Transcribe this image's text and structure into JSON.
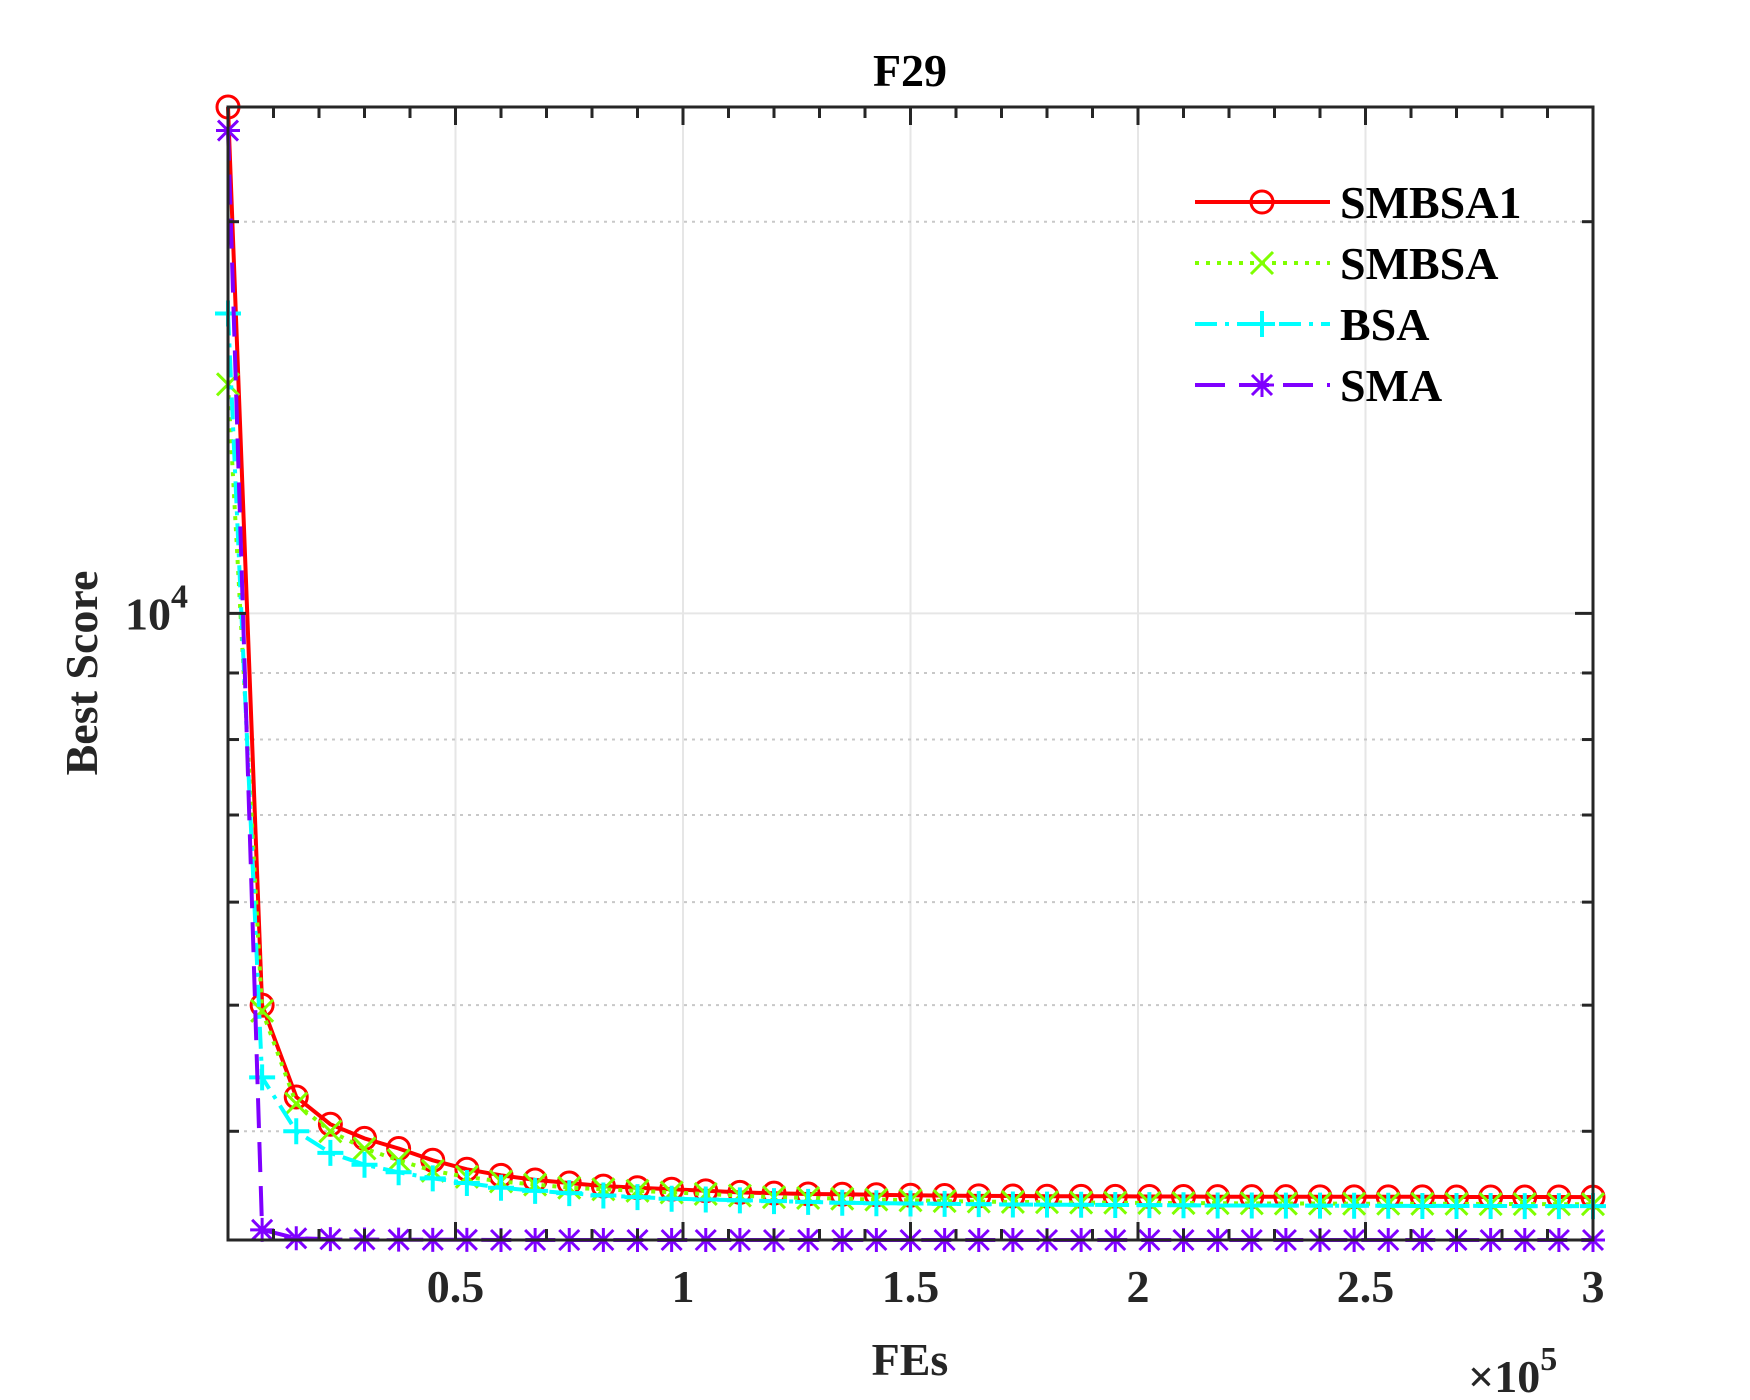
{
  "chart_data": {
    "type": "line",
    "title": "F29",
    "xlabel": "FEs",
    "ylabel": "Best Score",
    "x_exponent_label": "×10",
    "x_exponent": "5",
    "xlim": [
      0,
      300000
    ],
    "ylim": [
      3300,
      24500
    ],
    "yscale": "log",
    "grid": true,
    "legend_position": "top-right",
    "x_ticks": [
      {
        "value": 50000,
        "label": "0.5"
      },
      {
        "value": 100000,
        "label": "1"
      },
      {
        "value": 150000,
        "label": "1.5"
      },
      {
        "value": 200000,
        "label": "2"
      },
      {
        "value": 250000,
        "label": "2.5"
      },
      {
        "value": 300000,
        "label": "3"
      }
    ],
    "y_ticks": [
      {
        "value": 10000,
        "base": "10",
        "exp": "4"
      }
    ],
    "x": [
      0,
      7500,
      15000,
      22500,
      30000,
      37500,
      45000,
      52500,
      60000,
      67500,
      75000,
      82500,
      90000,
      97500,
      105000,
      112500,
      120000,
      127500,
      135000,
      142500,
      150000,
      157500,
      165000,
      172500,
      180000,
      187500,
      195000,
      202500,
      210000,
      217500,
      225000,
      232500,
      240000,
      247500,
      255000,
      262500,
      270000,
      277500,
      285000,
      292500,
      300000
    ],
    "series": [
      {
        "name": "SMBSA1",
        "color": "#ff0000",
        "dash": "solid",
        "marker": "circle",
        "values": [
          24500,
          5000,
          4250,
          4050,
          3950,
          3880,
          3800,
          3740,
          3700,
          3670,
          3650,
          3630,
          3620,
          3610,
          3600,
          3590,
          3585,
          3580,
          3578,
          3575,
          3572,
          3570,
          3568,
          3567,
          3566,
          3565,
          3565,
          3564,
          3564,
          3563,
          3563,
          3563,
          3562,
          3562,
          3562,
          3562,
          3561,
          3561,
          3561,
          3561,
          3560
        ]
      },
      {
        "name": "SMBSA",
        "color": "#7fff00",
        "dash": "dotted",
        "marker": "x",
        "values": [
          15000,
          4950,
          4200,
          4000,
          3880,
          3800,
          3730,
          3690,
          3660,
          3640,
          3620,
          3610,
          3600,
          3590,
          3580,
          3570,
          3560,
          3555,
          3550,
          3545,
          3540,
          3535,
          3532,
          3530,
          3528,
          3526,
          3525,
          3524,
          3523,
          3522,
          3521,
          3520,
          3520,
          3519,
          3519,
          3518,
          3518,
          3517,
          3517,
          3516,
          3516
        ]
      },
      {
        "name": "BSA",
        "color": "#00ffff",
        "dash": "dashdot",
        "marker": "plus",
        "values": [
          17000,
          4400,
          4000,
          3850,
          3770,
          3720,
          3680,
          3650,
          3620,
          3600,
          3585,
          3570,
          3560,
          3550,
          3545,
          3540,
          3535,
          3530,
          3525,
          3522,
          3520,
          3518,
          3516,
          3514,
          3513,
          3512,
          3511,
          3510,
          3509,
          3508,
          3508,
          3507,
          3507,
          3506,
          3506,
          3505,
          3505,
          3505,
          3504,
          3504,
          3504
        ]
      },
      {
        "name": "SMA",
        "color": "#7f00ff",
        "dash": "dashed",
        "marker": "asterisk",
        "values": [
          23500,
          3360,
          3310,
          3305,
          3303,
          3302,
          3301,
          3301,
          3300,
          3300,
          3300,
          3300,
          3300,
          3300,
          3300,
          3300,
          3300,
          3300,
          3300,
          3300,
          3300,
          3300,
          3300,
          3300,
          3300,
          3300,
          3300,
          3300,
          3300,
          3300,
          3300,
          3300,
          3300,
          3300,
          3300,
          3300,
          3300,
          3300,
          3300,
          3300,
          3300
        ]
      }
    ]
  }
}
